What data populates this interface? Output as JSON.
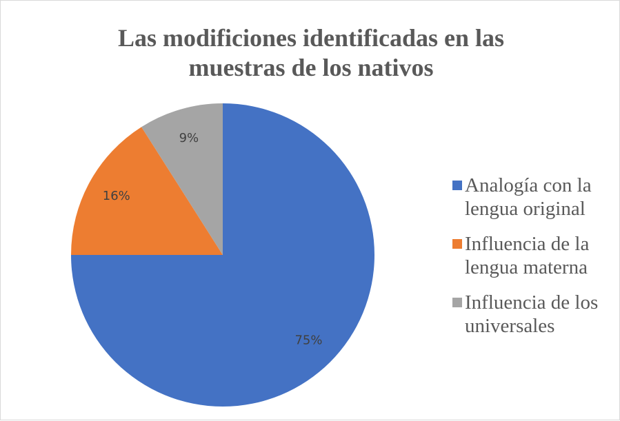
{
  "chart_data": {
    "type": "pie",
    "title": "Las modificiones identificadas en las muestras de los nativos",
    "categories": [
      "Analogía con la lengua original",
      "Influencia de la lengua materna",
      "Influencia de los universales"
    ],
    "values": [
      75,
      16,
      9
    ],
    "value_labels": [
      "75%",
      "16%",
      "9%"
    ],
    "colors": [
      "#4472c4",
      "#ed7d31",
      "#a5a5a5"
    ],
    "legend": "right"
  }
}
